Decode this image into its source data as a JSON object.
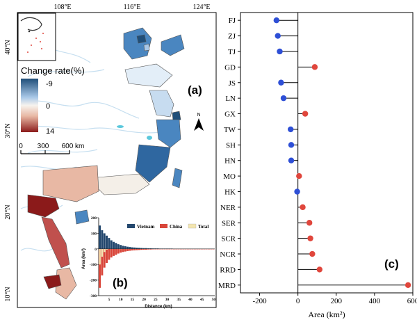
{
  "panels": {
    "a": "(a)",
    "b": "(b)",
    "c": "(c)"
  },
  "map": {
    "lon_ticks": [
      "108°E",
      "116°E",
      "124°E"
    ],
    "lat_ticks": [
      "40°N",
      "30°N",
      "20°N",
      "10°N"
    ],
    "legend_title": "Change rate(%)",
    "legend_values": [
      "-9",
      "0",
      "14"
    ],
    "scale_bar": [
      "0",
      "300",
      "600 km"
    ],
    "north": "N",
    "colors": {
      "neg_strong": "#1f4e79",
      "neg_mid": "#4a86c0",
      "neg_light": "#a9c8e8",
      "zero": "#f4efe8",
      "pos_light": "#e8b8a4",
      "pos_mid": "#c0504d",
      "pos_strong": "#8b1a1a",
      "river": "#c6dff0",
      "lake": "#5bc8dc"
    }
  },
  "chart_data": [
    {
      "type": "scatter",
      "panel": "c",
      "xlabel": "Area (km²)",
      "xlim": [
        -300,
        600
      ],
      "xticks": [
        -200,
        0,
        200,
        400,
        600
      ],
      "categories": [
        "FJ",
        "ZJ",
        "TJ",
        "GD",
        "JS",
        "LN",
        "GX",
        "TW",
        "SH",
        "HN",
        "MO",
        "HK",
        "NER",
        "SER",
        "SCR",
        "NCR",
        "RRD",
        "MRD"
      ],
      "values": [
        -112,
        -105,
        -95,
        88,
        -88,
        -75,
        38,
        -38,
        -35,
        -35,
        6,
        -4,
        25,
        60,
        65,
        75,
        113,
        575
      ],
      "colors": {
        "negative": "#2e4fd6",
        "positive": "#e0463c"
      }
    },
    {
      "type": "bar",
      "panel": "b",
      "xlabel": "Distance (km)",
      "ylabel": "Area (km²)",
      "ylim": [
        -300,
        200
      ],
      "yticks": [
        -300,
        -200,
        -100,
        0,
        100,
        200
      ],
      "xticks": [
        5,
        10,
        15,
        20,
        25,
        30,
        35,
        40,
        45,
        50
      ],
      "series": [
        {
          "name": "Vietnam",
          "color": "#24486e",
          "values": [
            150,
            120,
            100,
            85,
            70,
            55,
            45,
            38,
            30,
            25,
            20,
            17,
            14,
            12,
            10,
            9,
            8,
            7,
            6,
            5,
            5,
            4,
            4,
            3,
            3,
            3,
            2,
            2,
            2,
            2,
            2,
            2,
            1,
            1,
            1,
            1,
            1,
            1,
            1,
            1,
            1,
            1,
            1,
            1,
            1,
            1,
            1,
            1,
            1,
            1
          ]
        },
        {
          "name": "China",
          "color": "#d9463a",
          "values": [
            -250,
            -170,
            -120,
            -90,
            -70,
            -55,
            -45,
            -38,
            -30,
            -24,
            -20,
            -17,
            -14,
            -12,
            -10,
            -9,
            -8,
            -7,
            -6,
            -5,
            -5,
            -4,
            -4,
            -3,
            -3,
            -3,
            -2,
            -2,
            -2,
            -2,
            -2,
            -2,
            -1,
            -1,
            -1,
            -1,
            -1,
            -1,
            -1,
            -1,
            -1,
            -1,
            -1,
            -1,
            -1,
            -1,
            -1,
            -1,
            -1,
            -1
          ]
        },
        {
          "name": "Total",
          "color": "#f3e6b0",
          "values": [
            -100,
            -50,
            -20,
            -5,
            0,
            0,
            0,
            0,
            0,
            1,
            0,
            0,
            0,
            0,
            0,
            0,
            0,
            0,
            0,
            0,
            0,
            0,
            0,
            0,
            0,
            0,
            0,
            0,
            0,
            0,
            0,
            0,
            0,
            0,
            0,
            0,
            0,
            0,
            0,
            0,
            0,
            0,
            0,
            0,
            0,
            0,
            0,
            0,
            0,
            0
          ]
        }
      ]
    }
  ]
}
